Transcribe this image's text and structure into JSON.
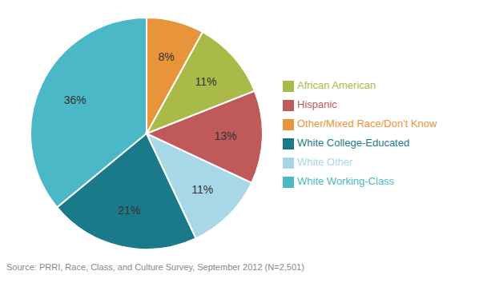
{
  "chart_data": {
    "type": "pie",
    "categories": [
      "White Working-Class",
      "White College-Educated",
      "White Other",
      "Hispanic",
      "African American",
      "Other/Mixed Race/Don't Know"
    ],
    "values": [
      36,
      21,
      11,
      13,
      11,
      8
    ],
    "value_labels": [
      "36%",
      "21%",
      "11%",
      "13%",
      "11%",
      "8%"
    ],
    "colors": [
      "#4BB8C8",
      "#1A7A8A",
      "#A8D8E8",
      "#C05A5A",
      "#AABA48",
      "#E8943A"
    ],
    "data_labels": true,
    "legend": "right",
    "annotations": [
      "Source: PRRI, Race, Class, and Culture Survey, September 2012 (N=2,501)"
    ]
  }
}
